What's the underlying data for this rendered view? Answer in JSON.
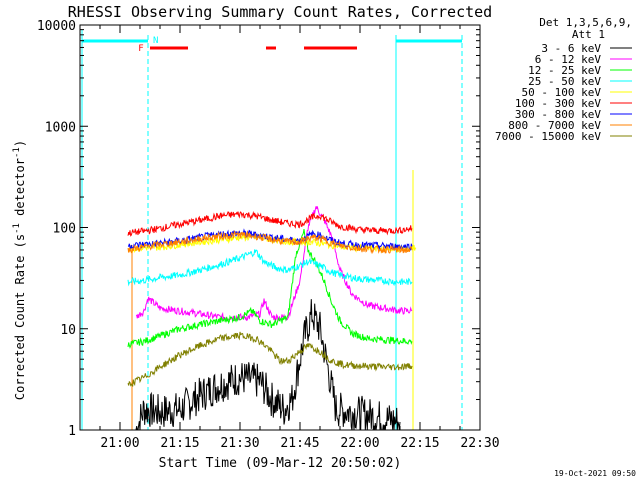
{
  "chart_data": {
    "type": "line",
    "title": "RHESSI Observing Summary Count Rates, Corrected",
    "xlabel": "Start Time (09-Mar-12 20:50:02)",
    "ylabel": "Corrected Count Rate (s⁻¹ detector⁻¹)",
    "ylabel_main": "Corrected Count Rate (s",
    "ylabel_sup1": "-1",
    "ylabel_mid": " detector",
    "ylabel_sup2": "-1",
    "ylabel_end": ")",
    "yscale": "log",
    "ylim": [
      1,
      10000
    ],
    "xlim_minutes": [
      20.83,
      22.5
    ],
    "x_ticks": [
      "21:00",
      "21:15",
      "21:30",
      "21:45",
      "22:00",
      "22:15",
      "22:30"
    ],
    "x_tick_minutes": [
      1260,
      1275,
      1290,
      1305,
      1320,
      1335,
      1350
    ],
    "y_ticks": [
      "10000",
      "1000",
      "100",
      "10",
      "1"
    ],
    "y_tick_values": [
      10000,
      1000,
      100,
      10,
      1
    ],
    "legend_header": [
      "Det 1,3,5,6,9,",
      "Att 1"
    ],
    "legend_placement": "right",
    "footer_date": "19-Oct-2021 09:50",
    "flags": {
      "F_label": "F",
      "N_label": "N"
    },
    "series": [
      {
        "name": "3 - 6 keV",
        "color": "#000000",
        "points": [
          [
            1264,
            1.0
          ],
          [
            1266,
            1.6
          ],
          [
            1270,
            1.5
          ],
          [
            1275,
            1.6
          ],
          [
            1280,
            2.2
          ],
          [
            1285,
            2.8
          ],
          [
            1290,
            3.3
          ],
          [
            1295,
            3.0
          ],
          [
            1298,
            2.0
          ],
          [
            1301,
            1.6
          ],
          [
            1303,
            2.0
          ],
          [
            1306,
            8
          ],
          [
            1308,
            14
          ],
          [
            1310,
            10
          ],
          [
            1312,
            4
          ],
          [
            1314,
            1.6
          ],
          [
            1318,
            1.5
          ],
          [
            1322,
            1.4
          ],
          [
            1326,
            1.3
          ],
          [
            1330,
            1.2
          ]
        ]
      },
      {
        "name": "6 - 12 keV",
        "color": "#ff00ff",
        "points": [
          [
            1264,
            13
          ],
          [
            1266,
            15
          ],
          [
            1267,
            20
          ],
          [
            1270,
            16
          ],
          [
            1275,
            15
          ],
          [
            1280,
            14
          ],
          [
            1285,
            13
          ],
          [
            1289,
            13
          ],
          [
            1292,
            13
          ],
          [
            1295,
            14
          ],
          [
            1296,
            19
          ],
          [
            1298,
            13
          ],
          [
            1302,
            13
          ],
          [
            1305,
            30
          ],
          [
            1307,
            100
          ],
          [
            1309,
            160
          ],
          [
            1311,
            120
          ],
          [
            1313,
            80
          ],
          [
            1315,
            38
          ],
          [
            1318,
            22
          ],
          [
            1322,
            17
          ],
          [
            1326,
            16
          ],
          [
            1330,
            15
          ],
          [
            1333,
            15
          ]
        ]
      },
      {
        "name": "12 - 25 keV",
        "color": "#00ff00",
        "points": [
          [
            1262,
            7
          ],
          [
            1266,
            7.5
          ],
          [
            1270,
            8.5
          ],
          [
            1275,
            10
          ],
          [
            1280,
            11
          ],
          [
            1285,
            12
          ],
          [
            1290,
            13
          ],
          [
            1293,
            15
          ],
          [
            1295,
            12
          ],
          [
            1298,
            11
          ],
          [
            1302,
            13
          ],
          [
            1304,
            55
          ],
          [
            1306,
            90
          ],
          [
            1307,
            60
          ],
          [
            1309,
            45
          ],
          [
            1311,
            30
          ],
          [
            1313,
            18
          ],
          [
            1315,
            12
          ],
          [
            1318,
            9
          ],
          [
            1322,
            8
          ],
          [
            1326,
            7.8
          ],
          [
            1330,
            7.6
          ],
          [
            1333,
            7.5
          ]
        ]
      },
      {
        "name": "25 - 50 keV",
        "color": "#00ffff",
        "points": [
          [
            1262,
            29
          ],
          [
            1266,
            30
          ],
          [
            1270,
            32
          ],
          [
            1275,
            34
          ],
          [
            1280,
            38
          ],
          [
            1285,
            43
          ],
          [
            1290,
            50
          ],
          [
            1294,
            58
          ],
          [
            1296,
            46
          ],
          [
            1299,
            40
          ],
          [
            1302,
            38
          ],
          [
            1305,
            42
          ],
          [
            1307,
            46
          ],
          [
            1310,
            42
          ],
          [
            1313,
            36
          ],
          [
            1316,
            33
          ],
          [
            1320,
            31
          ],
          [
            1325,
            30
          ],
          [
            1330,
            29
          ],
          [
            1333,
            29
          ]
        ]
      },
      {
        "name": "50 - 100 keV",
        "color": "#ffff00",
        "points": [
          [
            1262,
            62
          ],
          [
            1270,
            64
          ],
          [
            1280,
            72
          ],
          [
            1290,
            80
          ],
          [
            1295,
            80
          ],
          [
            1300,
            74
          ],
          [
            1305,
            72
          ],
          [
            1308,
            72
          ],
          [
            1312,
            68
          ],
          [
            1316,
            64
          ],
          [
            1320,
            63
          ],
          [
            1326,
            62
          ],
          [
            1332,
            62
          ],
          [
            1334,
            63
          ]
        ]
      },
      {
        "name": "100 - 300 keV",
        "color": "#ff0000",
        "points": [
          [
            1262,
            88
          ],
          [
            1266,
            92
          ],
          [
            1270,
            98
          ],
          [
            1275,
            108
          ],
          [
            1280,
            118
          ],
          [
            1285,
            130
          ],
          [
            1290,
            136
          ],
          [
            1294,
            130
          ],
          [
            1298,
            118
          ],
          [
            1302,
            110
          ],
          [
            1305,
            108
          ],
          [
            1308,
            125
          ],
          [
            1310,
            132
          ],
          [
            1312,
            118
          ],
          [
            1315,
            103
          ],
          [
            1320,
            95
          ],
          [
            1325,
            93
          ],
          [
            1330,
            94
          ],
          [
            1333,
            98
          ]
        ]
      },
      {
        "name": "300 - 800 keV",
        "color": "#0000ff",
        "points": [
          [
            1262,
            66
          ],
          [
            1266,
            68
          ],
          [
            1270,
            70
          ],
          [
            1275,
            74
          ],
          [
            1280,
            80
          ],
          [
            1285,
            86
          ],
          [
            1290,
            88
          ],
          [
            1294,
            85
          ],
          [
            1298,
            80
          ],
          [
            1302,
            76
          ],
          [
            1305,
            74
          ],
          [
            1308,
            86
          ],
          [
            1310,
            84
          ],
          [
            1313,
            74
          ],
          [
            1316,
            69
          ],
          [
            1320,
            67
          ],
          [
            1325,
            66
          ],
          [
            1330,
            65
          ],
          [
            1333,
            65
          ]
        ]
      },
      {
        "name": "800 - 7000 keV",
        "color": "#ff8000",
        "points": [
          [
            1262,
            60
          ],
          [
            1266,
            64
          ],
          [
            1270,
            68
          ],
          [
            1275,
            72
          ],
          [
            1280,
            78
          ],
          [
            1285,
            82
          ],
          [
            1290,
            85
          ],
          [
            1294,
            82
          ],
          [
            1298,
            76
          ],
          [
            1302,
            72
          ],
          [
            1305,
            72
          ],
          [
            1308,
            80
          ],
          [
            1310,
            78
          ],
          [
            1313,
            70
          ],
          [
            1316,
            65
          ],
          [
            1320,
            62
          ],
          [
            1325,
            61
          ],
          [
            1330,
            60
          ],
          [
            1333,
            60
          ]
        ]
      },
      {
        "name": "7000 - 15000 keV",
        "color": "#808000",
        "points": [
          [
            1262,
            2.8
          ],
          [
            1266,
            3.3
          ],
          [
            1270,
            4.2
          ],
          [
            1275,
            5.5
          ],
          [
            1280,
            6.8
          ],
          [
            1285,
            8.0
          ],
          [
            1290,
            8.6
          ],
          [
            1294,
            8.0
          ],
          [
            1297,
            6.5
          ],
          [
            1300,
            4.8
          ],
          [
            1302,
            4.8
          ],
          [
            1305,
            6.0
          ],
          [
            1307,
            6.8
          ],
          [
            1310,
            6.0
          ],
          [
            1313,
            4.8
          ],
          [
            1316,
            4.4
          ],
          [
            1320,
            4.3
          ],
          [
            1326,
            4.2
          ],
          [
            1330,
            4.2
          ],
          [
            1333,
            4.3
          ]
        ]
      }
    ]
  }
}
